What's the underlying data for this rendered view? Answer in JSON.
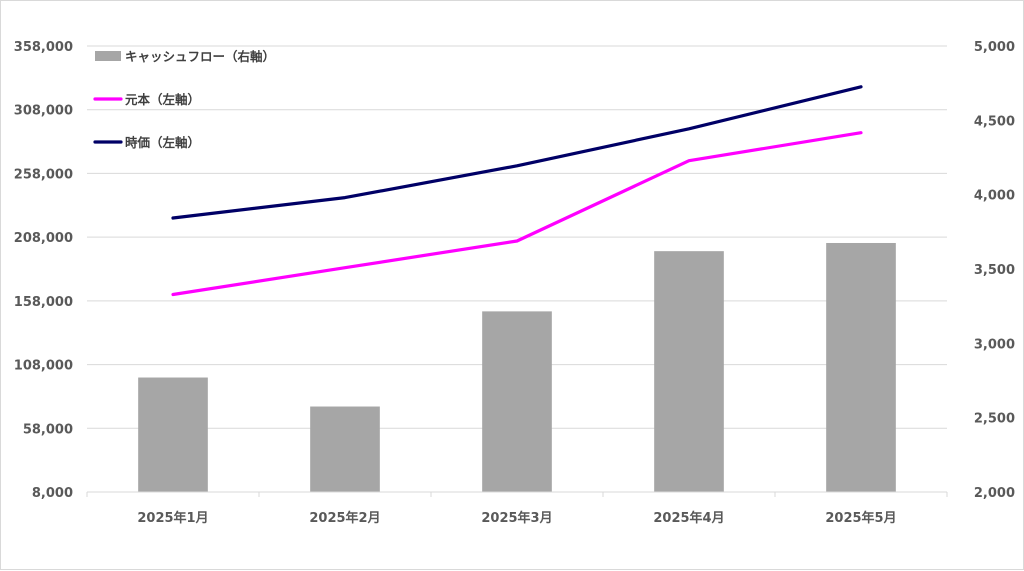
{
  "chart_data": {
    "type": "bar",
    "categories": [
      "2025年1月",
      "2025年2月",
      "2025年3月",
      "2025年4月",
      "2025年5月"
    ],
    "left_axis": {
      "ylim": [
        8000,
        358000
      ],
      "ticks": [
        8000,
        58000,
        108000,
        158000,
        208000,
        258000,
        308000,
        358000
      ],
      "tick_labels": [
        "8,000",
        "58,000",
        "108,000",
        "158,000",
        "208,000",
        "258,000",
        "308,000",
        "358,000"
      ]
    },
    "right_axis": {
      "ylim": [
        2000,
        5000
      ],
      "ticks": [
        2000,
        2500,
        3000,
        3500,
        4000,
        4500,
        5000
      ],
      "tick_labels": [
        "2,000",
        "2,500",
        "3,000",
        "3,500",
        "4,000",
        "4,500",
        "5,000"
      ]
    },
    "series": [
      {
        "name": "キャッシュフロー（右軸）",
        "type": "bar",
        "axis": "right",
        "color": "#a6a6a6",
        "values": [
          2770,
          2575,
          3215,
          3620,
          3675
        ]
      },
      {
        "name": "元本（左軸）",
        "type": "line",
        "axis": "left",
        "color": "#ff00ff",
        "values": [
          163000,
          184000,
          205000,
          268000,
          290000
        ]
      },
      {
        "name": "時価（左軸）",
        "type": "line",
        "axis": "left",
        "color": "#000066",
        "values": [
          223000,
          239000,
          264000,
          293000,
          326000
        ]
      }
    ],
    "grid": true,
    "legend_position": "top-left"
  }
}
